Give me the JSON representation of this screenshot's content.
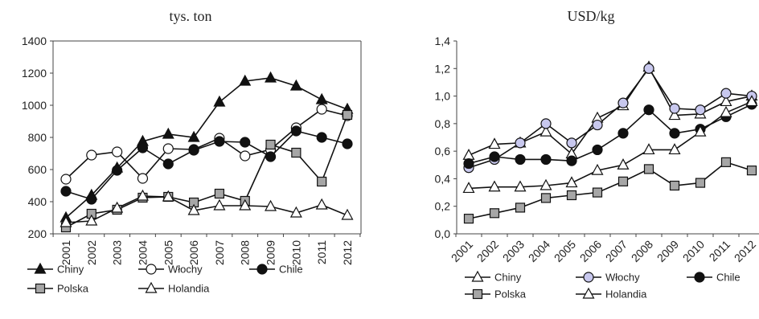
{
  "chart_data": [
    {
      "type": "line",
      "title": "tys. ton",
      "x": [
        "2001",
        "2002",
        "2003",
        "2004",
        "2005",
        "2006",
        "2007",
        "2008",
        "2009",
        "2010",
        "2011",
        "2012"
      ],
      "ylim": [
        200,
        1400
      ],
      "yticks": [
        200,
        400,
        600,
        800,
        1000,
        1200,
        1400
      ],
      "ytick_labels": [
        "200",
        "400",
        "600",
        "800",
        "1000",
        "1200",
        "1400"
      ],
      "x_label_rotation": "vertical",
      "grid": false,
      "legend": "bottom",
      "series": [
        {
          "name": "Chiny",
          "marker": "triangle",
          "fill": "#111111",
          "values": [
            300,
            440,
            610,
            775,
            820,
            800,
            1020,
            1150,
            1170,
            1120,
            1035,
            975
          ]
        },
        {
          "name": "Włochy",
          "marker": "circle",
          "fill": "#ffffff",
          "values": [
            540,
            690,
            710,
            545,
            730,
            725,
            795,
            685,
            725,
            860,
            975,
            935
          ]
        },
        {
          "name": "Chile",
          "marker": "circle",
          "fill": "#111111",
          "values": [
            465,
            415,
            595,
            735,
            635,
            720,
            775,
            770,
            680,
            840,
            800,
            760
          ]
        },
        {
          "name": "Polska",
          "marker": "square",
          "fill": "#a6a6a6",
          "values": [
            240,
            325,
            350,
            425,
            430,
            395,
            450,
            405,
            755,
            705,
            525,
            940
          ]
        },
        {
          "name": "Holandia",
          "marker": "triangle",
          "fill": "#ffffff",
          "values": [
            270,
            280,
            360,
            435,
            430,
            345,
            375,
            375,
            370,
            330,
            380,
            315
          ]
        }
      ]
    },
    {
      "type": "line",
      "title": "USD/kg",
      "x": [
        "2001",
        "2002",
        "2003",
        "2004",
        "2005",
        "2006",
        "2007",
        "2008",
        "2009",
        "2010",
        "2011",
        "2012"
      ],
      "ylim": [
        0,
        1.4
      ],
      "yticks": [
        0,
        0.2,
        0.4,
        0.6,
        0.8,
        1.0,
        1.2,
        1.4
      ],
      "ytick_labels": [
        "0,0",
        "0,2",
        "0,4",
        "0,6",
        "0,8",
        "1,0",
        "1,2",
        "1,4"
      ],
      "x_label_rotation": "diagonal",
      "grid": false,
      "legend": "bottom",
      "series": [
        {
          "name": "Chiny",
          "marker": "triangle",
          "fill": "#ffffff",
          "values": [
            0.57,
            0.65,
            0.66,
            0.74,
            0.58,
            0.84,
            0.93,
            1.21,
            0.86,
            0.87,
            0.96,
            1.0
          ]
        },
        {
          "name": "Włochy",
          "marker": "circle",
          "fill": "#c8c8ee",
          "values": [
            0.48,
            0.54,
            0.66,
            0.8,
            0.66,
            0.79,
            0.95,
            1.2,
            0.91,
            0.9,
            1.02,
            1.0
          ]
        },
        {
          "name": "Chile",
          "marker": "circle",
          "fill": "#111111",
          "values": [
            0.51,
            0.56,
            0.54,
            0.54,
            0.53,
            0.61,
            0.73,
            0.9,
            0.73,
            0.76,
            0.85,
            0.94
          ]
        },
        {
          "name": "Polska",
          "marker": "square",
          "fill": "#a6a6a6",
          "values": [
            0.11,
            0.15,
            0.19,
            0.26,
            0.28,
            0.3,
            0.38,
            0.47,
            0.35,
            0.37,
            0.52,
            0.46
          ]
        },
        {
          "name": "Holandia",
          "marker": "triangle",
          "fill": "#ffffff",
          "values": [
            0.33,
            0.34,
            0.34,
            0.35,
            0.37,
            0.46,
            0.5,
            0.61,
            0.61,
            0.74,
            0.88,
            0.96
          ]
        }
      ]
    }
  ]
}
